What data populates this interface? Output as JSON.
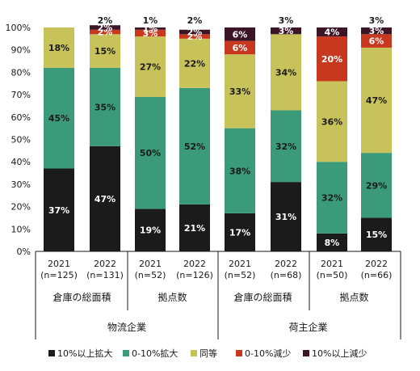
{
  "chart_data": {
    "type": "bar",
    "stacked": true,
    "y_ticks": [
      "0%",
      "10%",
      "20%",
      "30%",
      "40%",
      "50%",
      "60%",
      "70%",
      "80%",
      "90%",
      "100%"
    ],
    "ylim": [
      0,
      100
    ],
    "grid": false,
    "legend_position": "bottom",
    "categories": [
      "2021\n(n=125)",
      "2022\n(n=131)",
      "2021\n(n=52)",
      "2022\n(n=126)",
      "2021\n(n=52)",
      "2022\n(n=68)",
      "2021\n(n=50)",
      "2022\n(n=66)"
    ],
    "category_year": [
      "2021",
      "2022",
      "2021",
      "2022",
      "2021",
      "2022",
      "2021",
      "2022"
    ],
    "category_n": [
      "(n=125)",
      "(n=131)",
      "(n=52)",
      "(n=126)",
      "(n=52)",
      "(n=68)",
      "(n=50)",
      "(n=66)"
    ],
    "subgroups": [
      {
        "label": "倉庫の総面積",
        "span": [
          0,
          1
        ]
      },
      {
        "label": "拠点数",
        "span": [
          2,
          3
        ]
      },
      {
        "label": "倉庫の総面積",
        "span": [
          4,
          5
        ]
      },
      {
        "label": "拠点数",
        "span": [
          6,
          7
        ]
      }
    ],
    "groups": [
      {
        "label": "物流企業",
        "span": [
          0,
          3
        ]
      },
      {
        "label": "荷主企業",
        "span": [
          4,
          7
        ]
      }
    ],
    "series": [
      {
        "name": "10%以上拡大",
        "color": "#1b1b1b",
        "label_color": "#ffffff",
        "values": [
          37,
          47,
          19,
          21,
          17,
          31,
          8,
          15
        ],
        "labels": [
          "37%",
          "47%",
          "19%",
          "21%",
          "17%",
          "31%",
          "8%",
          "15%"
        ]
      },
      {
        "name": "0-10%拡大",
        "color": "#3a9a7a",
        "label_color": "#1b1b1b",
        "values": [
          45,
          35,
          50,
          52,
          38,
          32,
          32,
          29
        ],
        "labels": [
          "45%",
          "35%",
          "50%",
          "52%",
          "38%",
          "32%",
          "32%",
          "29%"
        ]
      },
      {
        "name": "同等",
        "color": "#c8c25a",
        "label_color": "#1b1b1b",
        "values": [
          18,
          15,
          27,
          22,
          33,
          34,
          36,
          47
        ],
        "labels": [
          "18%",
          "15%",
          "27%",
          "22%",
          "33%",
          "34%",
          "36%",
          "47%"
        ]
      },
      {
        "name": "0-10%減少",
        "color": "#c8381e",
        "label_color": "#ffffff",
        "values": [
          0,
          2,
          3,
          2,
          6,
          0,
          20,
          6
        ],
        "labels": [
          "",
          "2%",
          "3%",
          "2%",
          "6%",
          "",
          "20%",
          "6%"
        ]
      },
      {
        "name": "10%以上減少",
        "color": "#3c1526",
        "label_color": "#ffffff",
        "values": [
          0,
          2,
          1,
          2,
          6,
          3,
          4,
          3
        ],
        "labels": [
          "",
          "2%",
          "1%",
          "2%",
          "6%",
          "3%",
          "4%",
          "3%"
        ]
      }
    ],
    "above_labels": [
      "",
      "2%",
      "1%",
      "2%",
      "",
      "3%",
      "",
      "3%"
    ]
  }
}
